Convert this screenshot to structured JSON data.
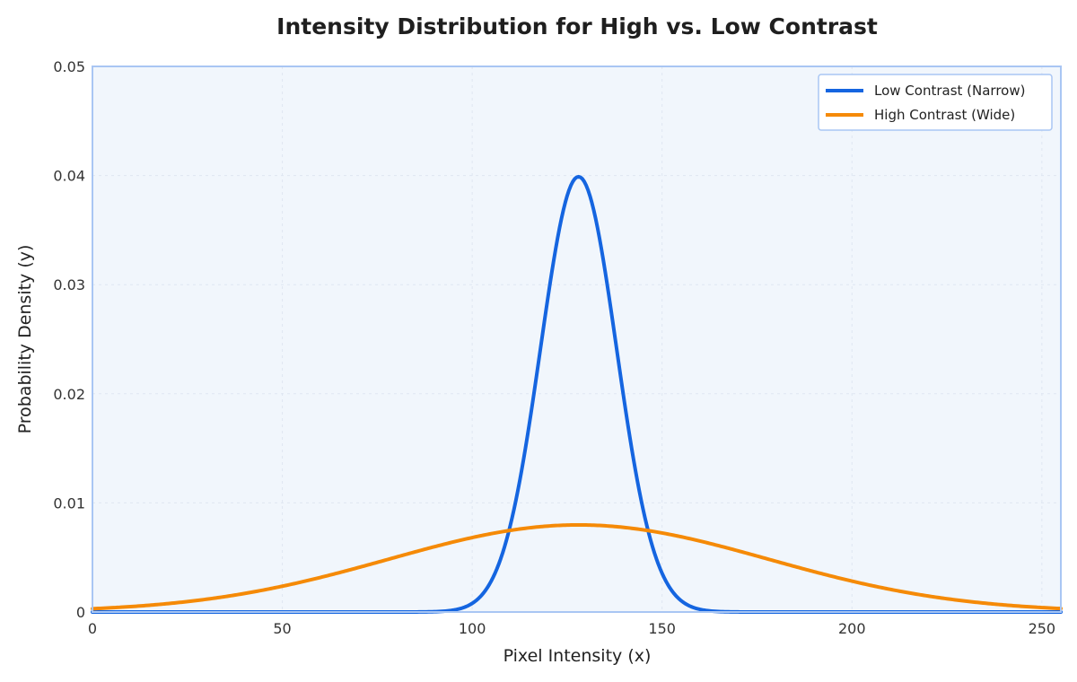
{
  "chart_data": {
    "type": "line",
    "title": "Intensity Distribution for High vs. Low Contrast",
    "xlabel": "Pixel Intensity (x)",
    "ylabel": "Probability Density (y)",
    "xlim": [
      0,
      255
    ],
    "ylim": [
      0,
      0.05
    ],
    "x_ticks": [
      0,
      50,
      100,
      150,
      200,
      250
    ],
    "x_tick_labels": [
      "0",
      "50",
      "100",
      "150",
      "200",
      "250"
    ],
    "y_ticks": [
      0,
      0.01,
      0.02,
      0.03,
      0.04,
      0.05
    ],
    "y_tick_labels": [
      "0",
      "0.01",
      "0.02",
      "0.03",
      "0.04",
      "0.05"
    ],
    "grid": true,
    "legend_position": "top-right",
    "plot_background": "#f1f6fc",
    "frame_color": "#a9c6f3",
    "series": [
      {
        "name": "Low Contrast (Narrow)",
        "color": "#1565e0",
        "distribution": "normal",
        "mean": 128,
        "std": 10,
        "x": [
          0,
          90,
          95,
          100,
          105,
          110,
          115,
          118,
          121,
          124,
          126,
          128,
          130,
          132,
          135,
          138,
          141,
          145,
          150,
          155,
          160,
          165,
          170,
          255
        ],
        "values": [
          0.0,
          3e-05,
          0.00017,
          0.0008,
          0.00283,
          0.0079,
          0.01714,
          0.0242,
          0.03123,
          0.03683,
          0.0391,
          0.03989,
          0.0391,
          0.03683,
          0.03123,
          0.0242,
          0.01714,
          0.0094,
          0.00355,
          0.00104,
          0.00024,
          4e-05,
          1e-05,
          0.0
        ]
      },
      {
        "name": "High Contrast (Wide)",
        "color": "#f58a07",
        "distribution": "normal",
        "mean": 128,
        "std": 50,
        "x": [
          0,
          10,
          20,
          30,
          40,
          50,
          60,
          70,
          80,
          90,
          100,
          110,
          120,
          128,
          140,
          150,
          160,
          170,
          180,
          190,
          200,
          210,
          220,
          230,
          240,
          255
        ],
        "values": [
          0.00031,
          0.00049,
          0.00078,
          0.00117,
          0.00169,
          0.00236,
          0.00317,
          0.00407,
          0.00504,
          0.00599,
          0.00684,
          0.00749,
          0.00788,
          0.00798,
          0.0077,
          0.00724,
          0.00651,
          0.00561,
          0.00464,
          0.0037,
          0.00284,
          0.00209,
          0.00148,
          0.00101,
          0.00066,
          0.00031
        ]
      }
    ]
  }
}
